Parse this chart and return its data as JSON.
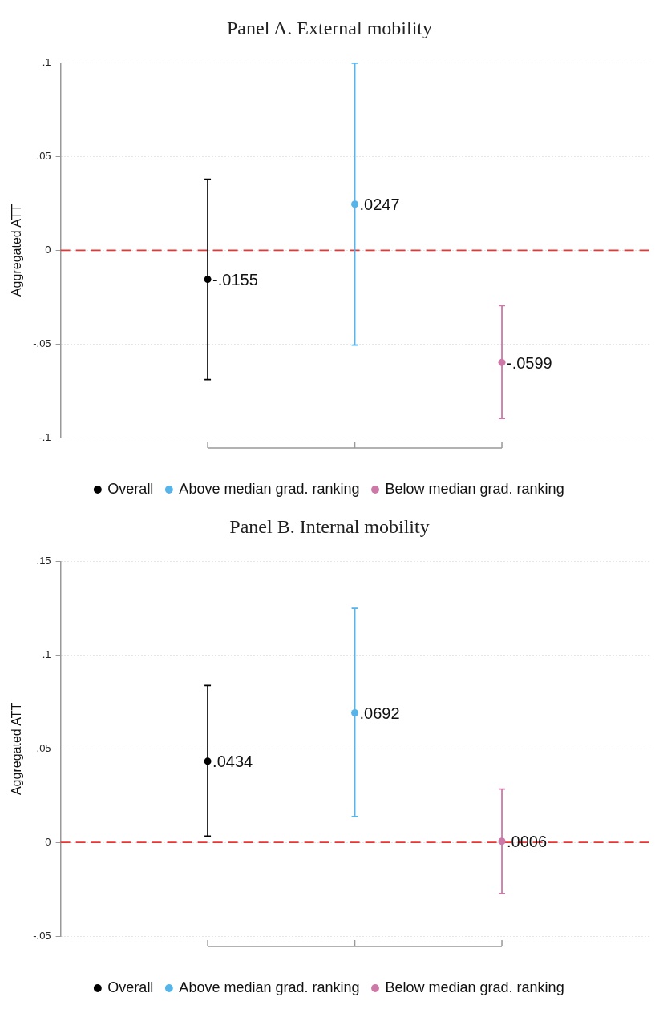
{
  "chart_data": [
    {
      "type": "scatter",
      "title": "Panel A. External mobility",
      "ylabel": "Aggregated ATT",
      "categories": [
        null,
        null,
        null
      ],
      "series": [
        {
          "name": "Overall",
          "color": "#000000",
          "values": [
            -0.0155,
            null,
            null
          ],
          "errors": [
            [
              -0.069,
              0.038
            ],
            null,
            null
          ],
          "value_labels": [
            "-.0155",
            null,
            null
          ]
        },
        {
          "name": "Above median grad. ranking",
          "color": "#56b4e9",
          "values": [
            null,
            0.0247,
            null
          ],
          "errors": [
            null,
            [
              -0.0506,
              0.1
            ],
            null
          ],
          "value_labels": [
            null,
            ".0247",
            null
          ]
        },
        {
          "name": "Below median grad. ranking",
          "color": "#cc79a7",
          "values": [
            null,
            null,
            -0.0599
          ],
          "errors": [
            null,
            null,
            [
              -0.0898,
              -0.0295
            ]
          ],
          "value_labels": [
            null,
            null,
            "-.0599"
          ]
        }
      ],
      "ylim": [
        -0.1,
        0.1
      ],
      "yticks": [
        {
          "value": -0.1,
          "label": "-.1"
        },
        {
          "value": -0.05,
          "label": "-.05"
        },
        0,
        {
          "value": 0.05,
          "label": ".05"
        },
        {
          "value": 0.1,
          "label": ".1"
        }
      ],
      "ref_lines": [
        {
          "axis": "y",
          "value": 0,
          "color": "#ee3333",
          "line_style": "dashed"
        }
      ],
      "grid": "y",
      "legend": "bottom",
      "marker": "circle",
      "tick_labels": "y"
    },
    {
      "type": "scatter",
      "title": "Panel B. Internal mobility",
      "ylabel": "Aggregated ATT",
      "categories": [
        null,
        null,
        null
      ],
      "series": [
        {
          "name": "Overall",
          "color": "#000000",
          "values": [
            0.0434,
            null,
            null
          ],
          "errors": [
            [
              0.0033,
              0.0838
            ],
            null,
            null
          ],
          "value_labels": [
            ".0434",
            null,
            null
          ]
        },
        {
          "name": "Above median grad. ranking",
          "color": "#56b4e9",
          "values": [
            null,
            0.0692,
            null
          ],
          "errors": [
            null,
            [
              0.0138,
              0.125
            ],
            null
          ],
          "value_labels": [
            null,
            ".0692",
            null
          ]
        },
        {
          "name": "Below median grad. ranking",
          "color": "#cc79a7",
          "values": [
            null,
            null,
            0.0006
          ],
          "errors": [
            null,
            null,
            [
              -0.0273,
              0.0285
            ]
          ],
          "value_labels": [
            null,
            null,
            ".0006"
          ]
        }
      ],
      "ylim": [
        -0.05,
        0.15
      ],
      "yticks": [
        {
          "value": -0.05,
          "label": "-.05"
        },
        0,
        {
          "value": 0.05,
          "label": ".05"
        },
        {
          "value": 0.1,
          "label": ".1"
        },
        {
          "value": 0.15,
          "label": ".15"
        }
      ],
      "ref_lines": [
        {
          "axis": "y",
          "value": 0,
          "color": "#ee3333",
          "line_style": "dashed"
        }
      ],
      "grid": "y",
      "legend": "bottom",
      "marker": "circle",
      "tick_labels": "y"
    }
  ]
}
